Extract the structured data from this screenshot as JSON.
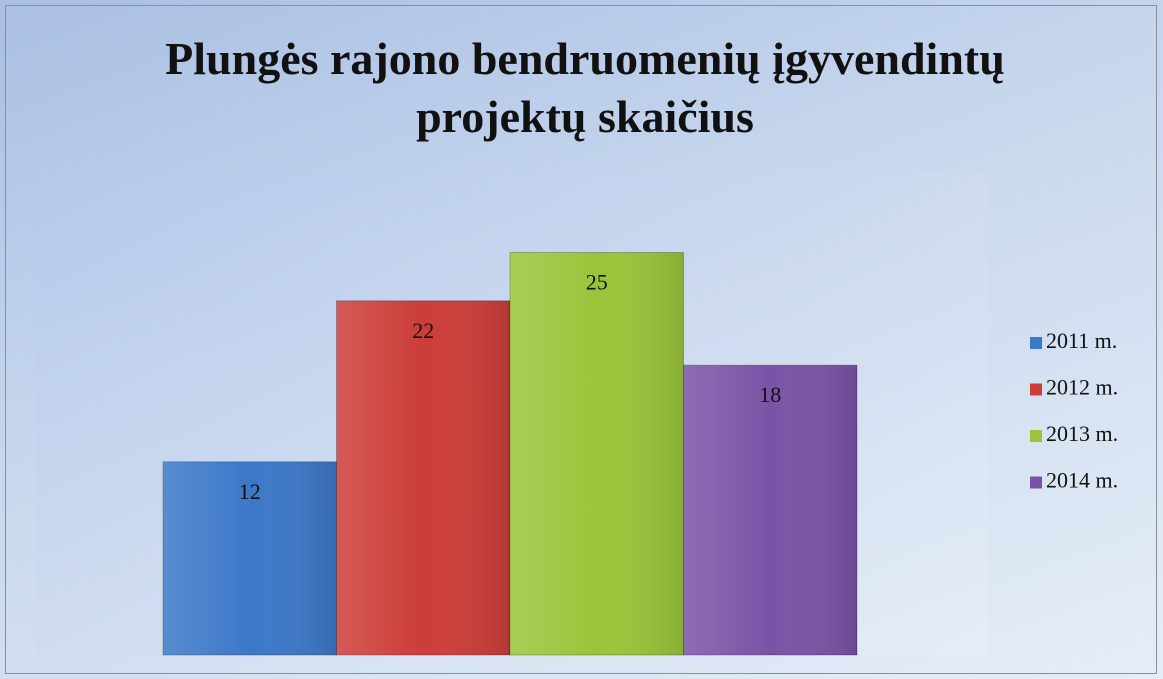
{
  "chart_data": {
    "type": "bar",
    "title": "Plungės rajono bendruomenių įgyvendintų projektų skaičius",
    "series": [
      {
        "name": "2011 m.",
        "color": "#3c78c8",
        "values": [
          12
        ]
      },
      {
        "name": "2012 m.",
        "color": "#cc3d39",
        "values": [
          22
        ]
      },
      {
        "name": "2013 m.",
        "color": "#9ac53a",
        "values": [
          25
        ]
      },
      {
        "name": "2014 m.",
        "color": "#7a53a6",
        "values": [
          18
        ]
      }
    ],
    "ylim": [
      0,
      30
    ],
    "legend": "right"
  }
}
